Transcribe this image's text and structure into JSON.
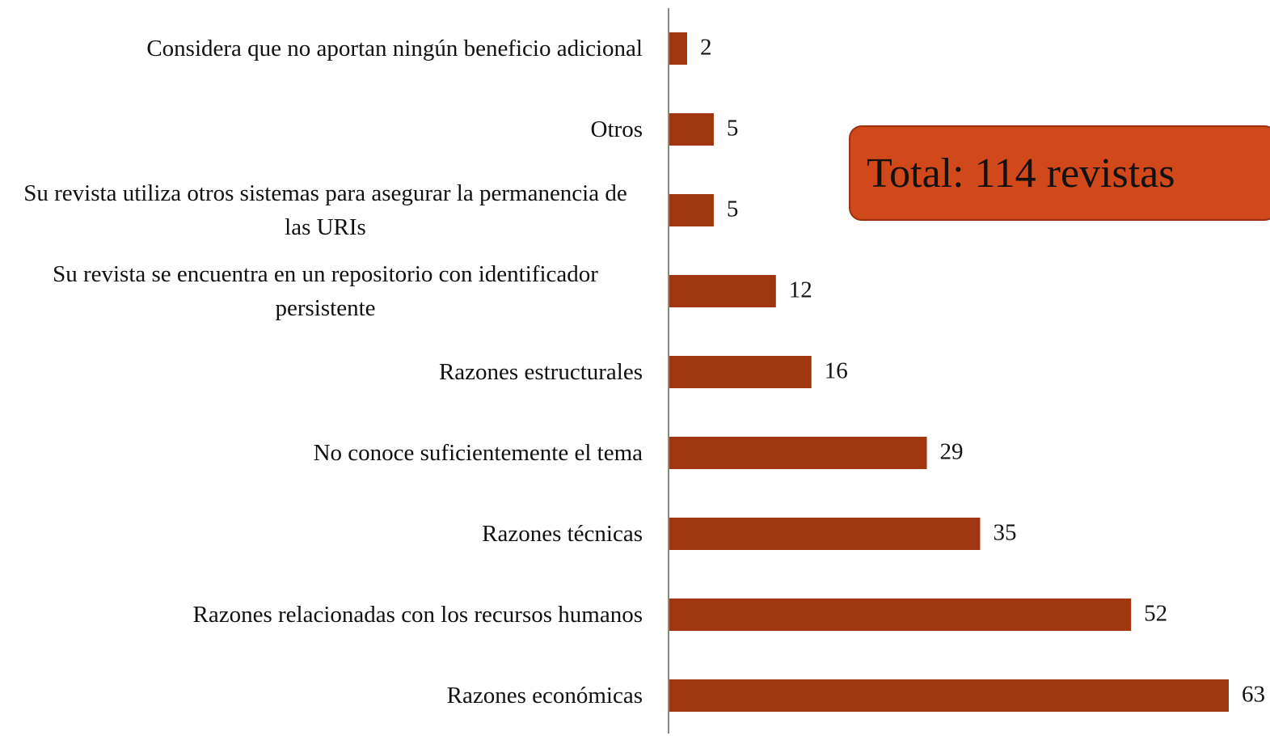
{
  "chart_data": {
    "type": "bar",
    "orientation": "horizontal",
    "categories": [
      "Considera que no aportan ningún beneficio adicional",
      "Otros",
      "Su revista utiliza otros sistemas para asegurar la permanencia de las URIs",
      "Su revista se encuentra en un repositorio con identificador persistente",
      "Razones estructurales",
      "No conoce suficientemente el tema",
      "Razones técnicas",
      "Razones relacionadas con los recursos humanos",
      "Razones económicas"
    ],
    "values": [
      2,
      5,
      5,
      12,
      16,
      29,
      35,
      52,
      63
    ],
    "color": "#a0360f",
    "xlim": [
      0,
      63
    ],
    "annotation": "Total: 114 revistas"
  }
}
